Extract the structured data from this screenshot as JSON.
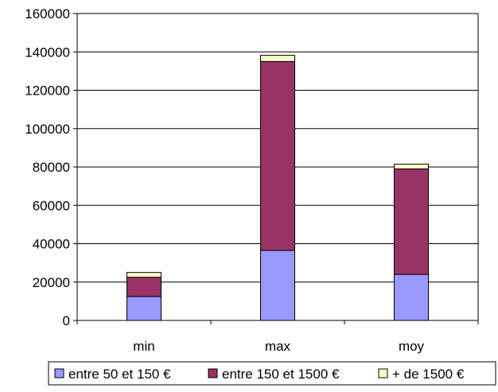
{
  "chart_data": {
    "type": "bar",
    "stacked": true,
    "categories": [
      "min",
      "max",
      "moy"
    ],
    "series": [
      {
        "name": "entre 50 et 150 €",
        "values": [
          12500,
          36500,
          24000
        ],
        "color": "#9999ff"
      },
      {
        "name": "entre 150 et 1500 €",
        "values": [
          10000,
          98500,
          55000
        ],
        "color": "#993366"
      },
      {
        "name": "+ de 1500 €",
        "values": [
          2500,
          3200,
          2500
        ],
        "color": "#ffffcc"
      }
    ],
    "yticks": [
      "0",
      "20000",
      "40000",
      "60000",
      "80000",
      "100000",
      "120000",
      "140000",
      "160000"
    ],
    "ylim": [
      0,
      160000
    ],
    "grid": true,
    "legend_position": "bottom"
  }
}
